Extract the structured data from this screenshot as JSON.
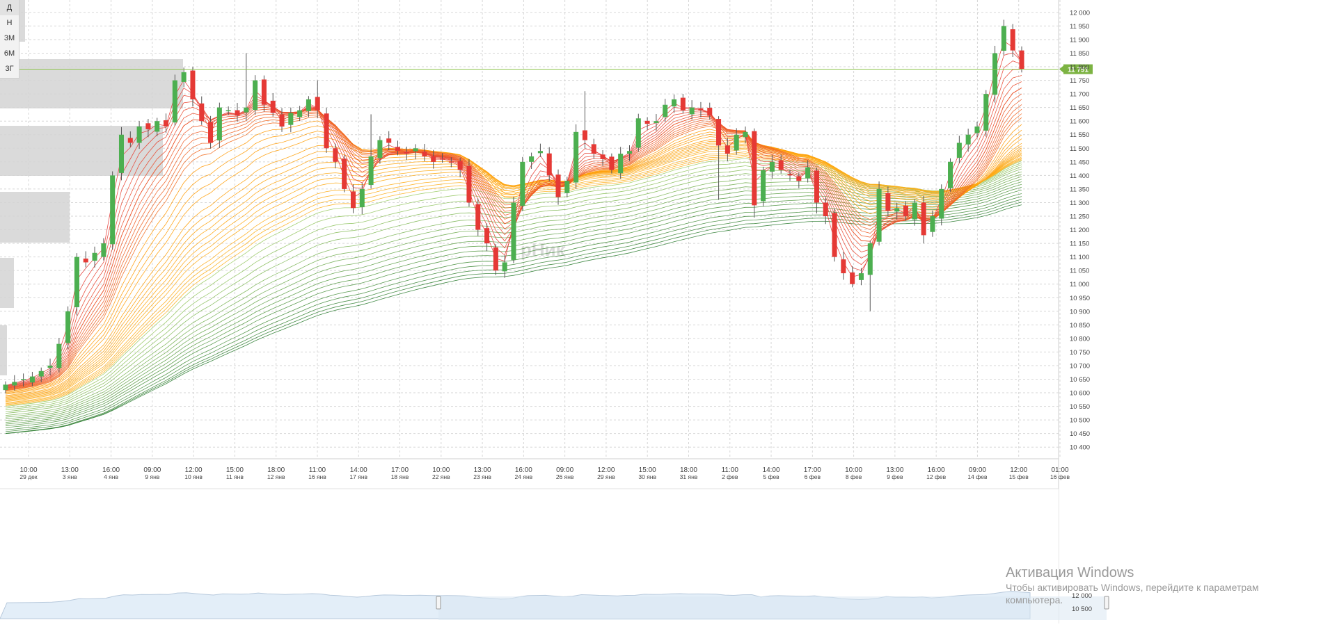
{
  "period_buttons": [
    {
      "label": "Д",
      "active": true
    },
    {
      "label": "Н",
      "active": false
    },
    {
      "label": "3М",
      "active": false
    },
    {
      "label": "6М",
      "active": false
    },
    {
      "label": "3Г",
      "active": false
    }
  ],
  "watermark": "рНик",
  "windows_activation": {
    "title": "Активация Windows",
    "subtitle": "Чтобы активировать Windows, перейдите к параметрам компьютера."
  },
  "colors": {
    "up_candle": "#4caf50",
    "down_candle": "#e53935",
    "last_price_line": "#8bc34a",
    "last_price_badge": "#7cb342",
    "fast_ribbon": "#e53935",
    "mid_ribbon": "#ff9800",
    "slow_ribbon": "#2e7d32",
    "grid": "#d6d6d6",
    "volume_box": "#d3d3d3"
  },
  "chart_data": {
    "type": "candlestick",
    "title": "",
    "xlabel": "",
    "ylabel": "",
    "ylim": [
      10375,
      12015
    ],
    "y_ticks": [
      "12 000",
      "11 950",
      "11 900",
      "11 850",
      "11 800",
      "11 750",
      "11 700",
      "11 650",
      "11 600",
      "11 550",
      "11 500",
      "11 450",
      "11 400",
      "11 350",
      "11 300",
      "11 250",
      "11 200",
      "11 150",
      "11 100",
      "11 050",
      "11 000",
      "10 950",
      "10 900",
      "10 850",
      "10 800",
      "10 750",
      "10 700",
      "10 650",
      "10 600",
      "10 550",
      "10 500",
      "10 450",
      "10 400"
    ],
    "x_ticks": [
      {
        "time": "10:00",
        "date": "29 дек"
      },
      {
        "time": "13:00",
        "date": "3 янв"
      },
      {
        "time": "16:00",
        "date": "4 янв"
      },
      {
        "time": "09:00",
        "date": "9 янв"
      },
      {
        "time": "12:00",
        "date": "10 янв"
      },
      {
        "time": "15:00",
        "date": "11 янв"
      },
      {
        "time": "18:00",
        "date": "12 янв"
      },
      {
        "time": "11:00",
        "date": "16 янв"
      },
      {
        "time": "14:00",
        "date": "17 янв"
      },
      {
        "time": "17:00",
        "date": "18 янв"
      },
      {
        "time": "10:00",
        "date": "22 янв"
      },
      {
        "time": "13:00",
        "date": "23 янв"
      },
      {
        "time": "16:00",
        "date": "24 янв"
      },
      {
        "time": "09:00",
        "date": "26 янв"
      },
      {
        "time": "12:00",
        "date": "29 янв"
      },
      {
        "time": "15:00",
        "date": "30 янв"
      },
      {
        "time": "18:00",
        "date": "31 янв"
      },
      {
        "time": "11:00",
        "date": "2 фев"
      },
      {
        "time": "14:00",
        "date": "5 фев"
      },
      {
        "time": "17:00",
        "date": "6 фев"
      },
      {
        "time": "10:00",
        "date": "8 фев"
      },
      {
        "time": "13:00",
        "date": "9 фев"
      },
      {
        "time": "16:00",
        "date": "12 фев"
      },
      {
        "time": "09:00",
        "date": "14 фев"
      },
      {
        "time": "12:00",
        "date": "15 фев"
      },
      {
        "time": "01:00",
        "date": "16 фев"
      }
    ],
    "last_price": {
      "value": 11791,
      "label": "11 791"
    },
    "close_path": [
      [
        0,
        10630
      ],
      [
        3,
        10660
      ],
      [
        5,
        10700
      ],
      [
        6,
        10780
      ],
      [
        7,
        10900
      ],
      [
        8,
        11100
      ],
      [
        9,
        11080
      ],
      [
        11,
        11150
      ],
      [
        12,
        11400
      ],
      [
        13,
        11550
      ],
      [
        14,
        11520
      ],
      [
        15,
        11580
      ],
      [
        16,
        11570
      ],
      [
        17,
        11600
      ],
      [
        18,
        11580
      ],
      [
        19,
        11750
      ],
      [
        20,
        11780
      ],
      [
        21,
        11680
      ],
      [
        22,
        11600
      ],
      [
        23,
        11520
      ],
      [
        24,
        11650
      ],
      [
        25,
        11640
      ],
      [
        26,
        11620
      ],
      [
        27,
        11650
      ],
      [
        28,
        11750
      ],
      [
        29,
        11660
      ],
      [
        30,
        11630
      ],
      [
        31,
        11580
      ],
      [
        32,
        11630
      ],
      [
        33,
        11640
      ],
      [
        34,
        11680
      ],
      [
        35,
        11640
      ],
      [
        36,
        11500
      ],
      [
        37,
        11450
      ],
      [
        38,
        11350
      ],
      [
        39,
        11280
      ],
      [
        40,
        11350
      ],
      [
        41,
        11470
      ],
      [
        42,
        11530
      ],
      [
        43,
        11520
      ],
      [
        44,
        11490
      ],
      [
        45,
        11480
      ],
      [
        46,
        11500
      ],
      [
        47,
        11470
      ],
      [
        48,
        11450
      ],
      [
        49,
        11460
      ],
      [
        50,
        11450
      ],
      [
        51,
        11420
      ],
      [
        52,
        11300
      ],
      [
        53,
        11200
      ],
      [
        54,
        11150
      ],
      [
        55,
        11050
      ],
      [
        56,
        11080
      ],
      [
        57,
        11300
      ],
      [
        58,
        11450
      ],
      [
        59,
        11470
      ],
      [
        60,
        11490
      ],
      [
        61,
        11400
      ],
      [
        62,
        11320
      ],
      [
        63,
        11380
      ],
      [
        64,
        11560
      ],
      [
        65,
        11530
      ],
      [
        66,
        11480
      ],
      [
        67,
        11460
      ],
      [
        68,
        11420
      ],
      [
        69,
        11480
      ],
      [
        70,
        11490
      ],
      [
        71,
        11610
      ],
      [
        72,
        11590
      ],
      [
        73,
        11600
      ],
      [
        74,
        11660
      ],
      [
        75,
        11680
      ],
      [
        76,
        11640
      ],
      [
        77,
        11650
      ],
      [
        78,
        11640
      ],
      [
        79,
        11620
      ],
      [
        80,
        11510
      ],
      [
        81,
        11480
      ],
      [
        82,
        11550
      ],
      [
        83,
        11560
      ],
      [
        84,
        11290
      ],
      [
        85,
        11420
      ],
      [
        86,
        11450
      ],
      [
        87,
        11420
      ],
      [
        88,
        11400
      ],
      [
        89,
        11380
      ],
      [
        90,
        11430
      ],
      [
        91,
        11300
      ],
      [
        92,
        11250
      ],
      [
        93,
        11100
      ],
      [
        94,
        11040
      ],
      [
        95,
        11000
      ],
      [
        96,
        11040
      ],
      [
        97,
        11150
      ],
      [
        98,
        11350
      ],
      [
        99,
        11270
      ],
      [
        100,
        11280
      ],
      [
        101,
        11250
      ],
      [
        102,
        11300
      ],
      [
        103,
        11180
      ],
      [
        104,
        11250
      ],
      [
        105,
        11350
      ],
      [
        106,
        11450
      ],
      [
        107,
        11520
      ],
      [
        108,
        11550
      ],
      [
        109,
        11580
      ],
      [
        110,
        11700
      ],
      [
        111,
        11850
      ],
      [
        112,
        11950
      ],
      [
        113,
        11860
      ],
      [
        114,
        11791
      ]
    ],
    "spikes": [
      {
        "i": 27,
        "high": 11850
      },
      {
        "i": 65,
        "high": 11710
      },
      {
        "i": 84,
        "high": 11245
      },
      {
        "i": 91,
        "high": 11260
      },
      {
        "i": 97,
        "high": 10900
      },
      {
        "i": 80,
        "high": 11310
      },
      {
        "i": 41,
        "high": 11625
      },
      {
        "i": 35,
        "high": 11750
      }
    ],
    "ribbons": [
      {
        "name": "",
        "color": "#e53935",
        "lines": 14,
        "periods": [
          2,
          14
        ]
      },
      {
        "name": "",
        "color": "#ff9800",
        "lines": 16,
        "periods": [
          16,
          48
        ]
      },
      {
        "name": "",
        "color": "#2e7d32",
        "lines": 18,
        "periods": [
          50,
          120
        ]
      }
    ],
    "grid": true,
    "y_axis_position": "right",
    "navigator": {
      "ticks": [
        "12 000",
        "10 500"
      ]
    }
  }
}
